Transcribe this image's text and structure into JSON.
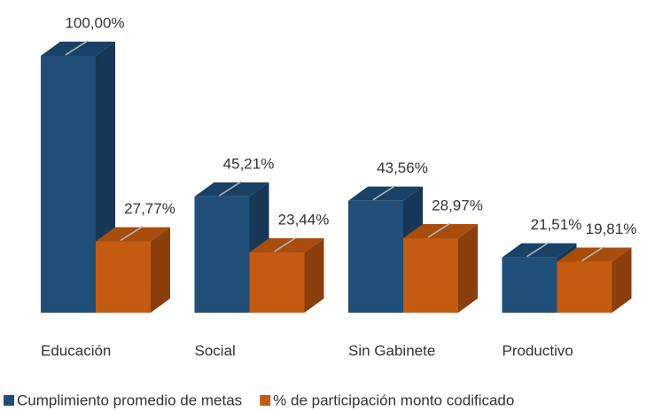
{
  "chart_data": {
    "type": "bar",
    "categories": [
      "Educación",
      "Social",
      "Sin Gabinete",
      "Productivo"
    ],
    "series": [
      {
        "name": "Cumplimiento promedio de metas",
        "color": "#1f4e79",
        "values": [
          100,
          45.21,
          43.56,
          21.51
        ],
        "value_labels": [
          "100,00%",
          "45,21%",
          "43,56%",
          "21,51%"
        ]
      },
      {
        "name": "% de participación monto codificado",
        "color": "#c55a11",
        "values": [
          27.77,
          23.44,
          28.97,
          19.81
        ],
        "value_labels": [
          "27,77%",
          "23,44%",
          "28,97%",
          "19,81%"
        ]
      }
    ],
    "legend": "bottom"
  }
}
